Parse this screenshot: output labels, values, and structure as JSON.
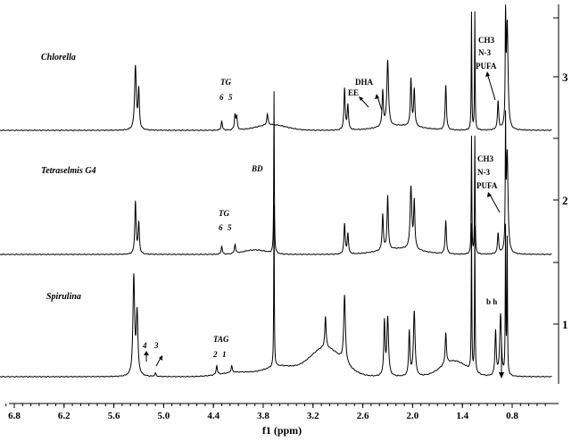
{
  "chart_data": {
    "type": "line",
    "title": "",
    "xlabel": "f1 (ppm)",
    "ylabel": "",
    "xlim": [
      7.15,
      0.28
    ],
    "x_reversed": true,
    "x_ticks": [
      6.8,
      6.2,
      5.6,
      5.0,
      4.4,
      3.8,
      3.2,
      2.6,
      2.0,
      1.4,
      0.8
    ],
    "x_tick_labels": [
      "6.8",
      "6.2",
      "5.6",
      "5.0",
      "4.4",
      "3.8",
      "3.2",
      "2.6",
      "2.0",
      "1.4",
      "0.8"
    ],
    "grid": false,
    "series": [
      {
        "name": "Chlorella",
        "index": "3",
        "baseline_ppm": [],
        "peaks": [
          {
            "ppm": 5.34,
            "height": 0.57
          },
          {
            "ppm": 5.3,
            "height": 0.35
          },
          {
            "ppm": 4.3,
            "height": 0.08
          },
          {
            "ppm": 4.14,
            "height": 0.13
          },
          {
            "ppm": 4.12,
            "height": 0.11
          },
          {
            "ppm": 3.75,
            "height": 0.1
          },
          {
            "ppm": 2.82,
            "height": 0.37
          },
          {
            "ppm": 2.78,
            "height": 0.22
          },
          {
            "ppm": 2.36,
            "height": 0.32
          },
          {
            "ppm": 2.3,
            "height": 0.59
          },
          {
            "ppm": 2.02,
            "height": 0.42
          },
          {
            "ppm": 1.98,
            "height": 0.33
          },
          {
            "ppm": 1.6,
            "height": 0.4
          },
          {
            "ppm": 1.29,
            "height": 1.05
          },
          {
            "ppm": 1.25,
            "height": 1.05
          },
          {
            "ppm": 0.97,
            "height": 0.25
          },
          {
            "ppm": 0.88,
            "height": 1.05
          },
          {
            "ppm": 0.86,
            "height": 0.95
          }
        ],
        "annotations": [
          "TG",
          "6",
          "5",
          "DHA",
          "EE",
          "CH3",
          "N-3",
          "PUFA"
        ]
      },
      {
        "name": "Tetraselmis G4",
        "index": "2",
        "peaks": [
          {
            "ppm": 5.34,
            "height": 0.47
          },
          {
            "ppm": 5.3,
            "height": 0.28
          },
          {
            "ppm": 4.3,
            "height": 0.07
          },
          {
            "ppm": 4.14,
            "height": 0.08
          },
          {
            "ppm": 3.67,
            "height": 1.45
          },
          {
            "ppm": 2.82,
            "height": 0.27
          },
          {
            "ppm": 2.78,
            "height": 0.18
          },
          {
            "ppm": 2.36,
            "height": 0.32
          },
          {
            "ppm": 2.3,
            "height": 0.48
          },
          {
            "ppm": 2.02,
            "height": 0.55
          },
          {
            "ppm": 1.98,
            "height": 0.42
          },
          {
            "ppm": 1.6,
            "height": 0.3
          },
          {
            "ppm": 1.29,
            "height": 1.05
          },
          {
            "ppm": 1.25,
            "height": 1.05
          },
          {
            "ppm": 0.97,
            "height": 0.18
          },
          {
            "ppm": 0.88,
            "height": 1.05
          },
          {
            "ppm": 0.86,
            "height": 0.9
          }
        ],
        "annotations": [
          "BD",
          "TG",
          "6",
          "5",
          "CH3",
          "N-3",
          "PUFA"
        ]
      },
      {
        "name": "Spirulina",
        "index": "1",
        "peaks": [
          {
            "ppm": 5.36,
            "height": 0.88
          },
          {
            "ppm": 5.32,
            "height": 0.55
          },
          {
            "ppm": 5.1,
            "height": 0.03
          },
          {
            "ppm": 4.36,
            "height": 0.08
          },
          {
            "ppm": 4.18,
            "height": 0.06
          },
          {
            "ppm": 3.67,
            "height": 1.45
          },
          {
            "ppm": 3.05,
            "height": 0.28
          },
          {
            "ppm": 2.82,
            "height": 0.6
          },
          {
            "ppm": 2.3,
            "height": 0.52
          },
          {
            "ppm": 2.34,
            "height": 0.48
          },
          {
            "ppm": 2.04,
            "height": 0.4
          },
          {
            "ppm": 1.98,
            "height": 0.58
          },
          {
            "ppm": 1.6,
            "height": 0.28
          },
          {
            "ppm": 1.29,
            "height": 1.3
          },
          {
            "ppm": 1.25,
            "height": 1.3
          },
          {
            "ppm": 1.0,
            "height": 0.4
          },
          {
            "ppm": 0.94,
            "height": 0.55
          },
          {
            "ppm": 0.88,
            "height": 1.3
          },
          {
            "ppm": 0.86,
            "height": 1.2
          }
        ],
        "annotations": [
          "4",
          "3",
          "TAG",
          "2",
          "1",
          "b h"
        ]
      }
    ]
  },
  "labels": {
    "chlorella": "Chlorella",
    "tetraselmis": "Tetraselmis G4",
    "spirulina": "Spirulina",
    "tg": "TG",
    "tg_6": "6",
    "tg_5": "5",
    "dha": "DHA",
    "ee": "EE",
    "ch3": "CH3",
    "n3": "N-3",
    "pufa": "PUFA",
    "bd": "BD",
    "four": "4",
    "three": "3",
    "tag": "TAG",
    "two": "2",
    "one": "1",
    "bh": "b h",
    "idx3": "3",
    "idx2": "2",
    "idx1": "1"
  },
  "colors": {
    "line": "#000000",
    "background": "#ffffff"
  }
}
